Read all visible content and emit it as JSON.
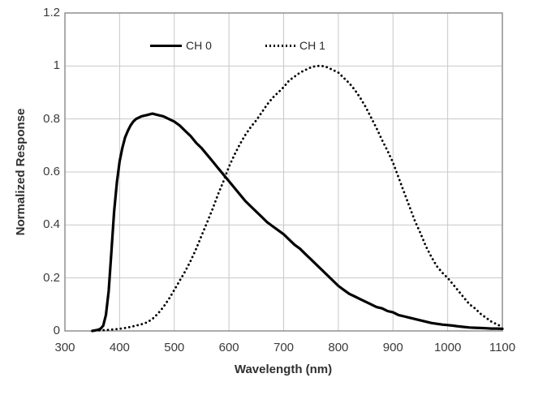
{
  "colors": {
    "background": "#ffffff",
    "gridline": "#c8c8c8",
    "plot_border": "#808080",
    "text": "#3a3a3a",
    "curve": "#000000"
  },
  "chart_data": {
    "type": "line",
    "title": "",
    "xlabel": "Wavelength (nm)",
    "ylabel": "Normalized Response",
    "xlim": [
      300,
      1100
    ],
    "ylim": [
      0,
      1.2
    ],
    "xticks": [
      "300",
      "400",
      "500",
      "600",
      "700",
      "800",
      "900",
      "1000",
      "1100"
    ],
    "yticks": [
      "0",
      "0.2",
      "0.4",
      "0.6",
      "0.8",
      "1",
      "1.2"
    ],
    "grid": true,
    "legend_position": "top-inside",
    "series": [
      {
        "name": "CH 0",
        "line_style": "solid",
        "color": "#000000",
        "points": [
          [
            350,
            0
          ],
          [
            355,
            0.002
          ],
          [
            360,
            0.004
          ],
          [
            365,
            0.008
          ],
          [
            370,
            0.02
          ],
          [
            375,
            0.06
          ],
          [
            380,
            0.15
          ],
          [
            385,
            0.3
          ],
          [
            390,
            0.45
          ],
          [
            395,
            0.56
          ],
          [
            400,
            0.64
          ],
          [
            405,
            0.69
          ],
          [
            410,
            0.73
          ],
          [
            415,
            0.755
          ],
          [
            420,
            0.775
          ],
          [
            425,
            0.79
          ],
          [
            430,
            0.8
          ],
          [
            440,
            0.81
          ],
          [
            450,
            0.815
          ],
          [
            460,
            0.82
          ],
          [
            470,
            0.815
          ],
          [
            480,
            0.81
          ],
          [
            490,
            0.8
          ],
          [
            500,
            0.79
          ],
          [
            510,
            0.775
          ],
          [
            520,
            0.755
          ],
          [
            530,
            0.735
          ],
          [
            540,
            0.71
          ],
          [
            550,
            0.69
          ],
          [
            560,
            0.665
          ],
          [
            570,
            0.64
          ],
          [
            580,
            0.615
          ],
          [
            590,
            0.59
          ],
          [
            600,
            0.565
          ],
          [
            610,
            0.54
          ],
          [
            620,
            0.515
          ],
          [
            630,
            0.49
          ],
          [
            640,
            0.47
          ],
          [
            650,
            0.45
          ],
          [
            660,
            0.43
          ],
          [
            670,
            0.41
          ],
          [
            680,
            0.395
          ],
          [
            690,
            0.38
          ],
          [
            700,
            0.365
          ],
          [
            710,
            0.345
          ],
          [
            720,
            0.325
          ],
          [
            730,
            0.31
          ],
          [
            740,
            0.29
          ],
          [
            750,
            0.27
          ],
          [
            760,
            0.25
          ],
          [
            770,
            0.23
          ],
          [
            780,
            0.21
          ],
          [
            790,
            0.19
          ],
          [
            800,
            0.17
          ],
          [
            810,
            0.155
          ],
          [
            820,
            0.14
          ],
          [
            830,
            0.13
          ],
          [
            840,
            0.12
          ],
          [
            850,
            0.11
          ],
          [
            860,
            0.1
          ],
          [
            870,
            0.09
          ],
          [
            880,
            0.085
          ],
          [
            890,
            0.075
          ],
          [
            900,
            0.07
          ],
          [
            910,
            0.06
          ],
          [
            920,
            0.055
          ],
          [
            930,
            0.05
          ],
          [
            940,
            0.045
          ],
          [
            950,
            0.04
          ],
          [
            960,
            0.035
          ],
          [
            970,
            0.03
          ],
          [
            980,
            0.027
          ],
          [
            990,
            0.024
          ],
          [
            1000,
            0.022
          ],
          [
            1010,
            0.02
          ],
          [
            1020,
            0.017
          ],
          [
            1030,
            0.015
          ],
          [
            1040,
            0.013
          ],
          [
            1050,
            0.012
          ],
          [
            1060,
            0.011
          ],
          [
            1070,
            0.01
          ],
          [
            1080,
            0.009
          ],
          [
            1090,
            0.009
          ],
          [
            1100,
            0.008
          ]
        ]
      },
      {
        "name": "CH 1",
        "line_style": "dotted",
        "color": "#000000",
        "points": [
          [
            355,
            0.001
          ],
          [
            370,
            0.003
          ],
          [
            380,
            0.004
          ],
          [
            390,
            0.006
          ],
          [
            400,
            0.008
          ],
          [
            410,
            0.011
          ],
          [
            420,
            0.015
          ],
          [
            430,
            0.02
          ],
          [
            440,
            0.025
          ],
          [
            450,
            0.032
          ],
          [
            460,
            0.045
          ],
          [
            470,
            0.065
          ],
          [
            480,
            0.09
          ],
          [
            490,
            0.12
          ],
          [
            500,
            0.155
          ],
          [
            510,
            0.19
          ],
          [
            520,
            0.225
          ],
          [
            530,
            0.265
          ],
          [
            540,
            0.31
          ],
          [
            550,
            0.36
          ],
          [
            560,
            0.41
          ],
          [
            570,
            0.46
          ],
          [
            580,
            0.515
          ],
          [
            590,
            0.565
          ],
          [
            600,
            0.62
          ],
          [
            610,
            0.665
          ],
          [
            620,
            0.705
          ],
          [
            630,
            0.74
          ],
          [
            640,
            0.77
          ],
          [
            650,
            0.795
          ],
          [
            660,
            0.825
          ],
          [
            670,
            0.855
          ],
          [
            680,
            0.88
          ],
          [
            690,
            0.9
          ],
          [
            700,
            0.92
          ],
          [
            710,
            0.945
          ],
          [
            720,
            0.96
          ],
          [
            730,
            0.975
          ],
          [
            740,
            0.985
          ],
          [
            750,
            0.995
          ],
          [
            760,
            1.0
          ],
          [
            770,
            1.0
          ],
          [
            780,
            0.995
          ],
          [
            790,
            0.985
          ],
          [
            800,
            0.975
          ],
          [
            810,
            0.955
          ],
          [
            820,
            0.935
          ],
          [
            830,
            0.91
          ],
          [
            840,
            0.88
          ],
          [
            850,
            0.845
          ],
          [
            860,
            0.805
          ],
          [
            870,
            0.765
          ],
          [
            880,
            0.72
          ],
          [
            890,
            0.68
          ],
          [
            900,
            0.635
          ],
          [
            910,
            0.58
          ],
          [
            920,
            0.525
          ],
          [
            930,
            0.47
          ],
          [
            940,
            0.415
          ],
          [
            950,
            0.37
          ],
          [
            960,
            0.32
          ],
          [
            970,
            0.28
          ],
          [
            980,
            0.245
          ],
          [
            990,
            0.22
          ],
          [
            1000,
            0.2
          ],
          [
            1010,
            0.175
          ],
          [
            1020,
            0.15
          ],
          [
            1030,
            0.125
          ],
          [
            1040,
            0.1
          ],
          [
            1050,
            0.085
          ],
          [
            1060,
            0.065
          ],
          [
            1070,
            0.05
          ],
          [
            1080,
            0.035
          ],
          [
            1090,
            0.025
          ],
          [
            1100,
            0.015
          ]
        ]
      }
    ]
  }
}
